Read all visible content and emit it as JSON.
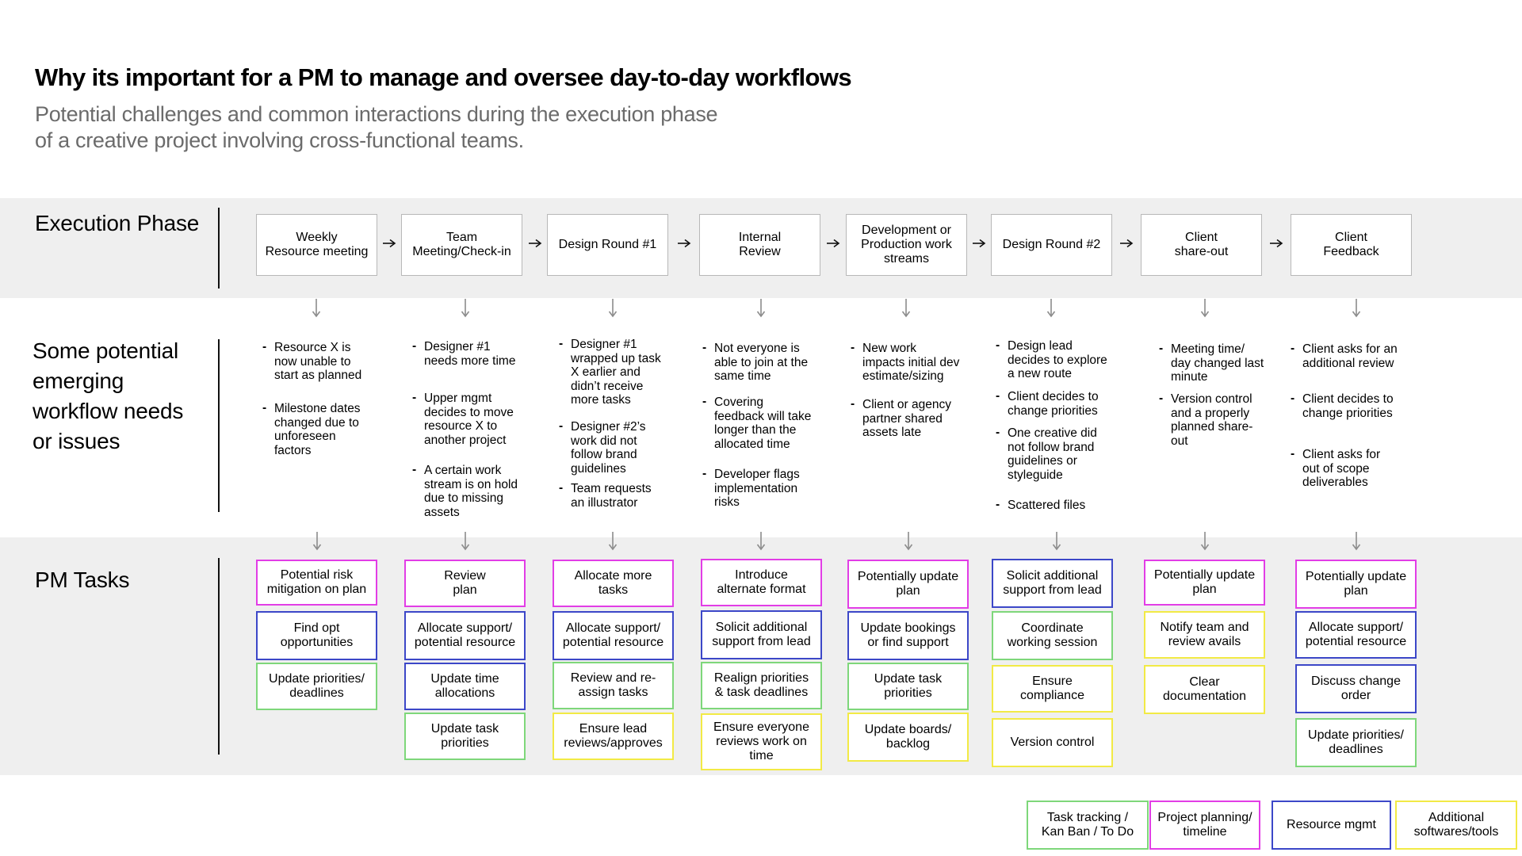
{
  "header": {
    "title": "Why its important for a PM to manage and oversee day-to-day workflows",
    "subtitle_line1": "Potential challenges and common interactions during the execution phase",
    "subtitle_line2": "of a creative project involving cross-functional teams."
  },
  "rows": {
    "execution": "Execution Phase",
    "issues": [
      "Some potential",
      "emerging",
      "workflow needs",
      "or issues"
    ],
    "tasks": "PM Tasks"
  },
  "colors": {
    "band": "#efefef",
    "arrow": "#8c8c8c",
    "planning": "#e23de6",
    "resource": "#3c47c8",
    "tracking": "#7ed77a",
    "tools": "#f2ea45"
  },
  "stages": [
    [
      "Weekly",
      "Resource meeting"
    ],
    [
      "Team",
      "Meeting/Check-in"
    ],
    [
      "Design Round #1"
    ],
    [
      "Internal",
      "Review"
    ],
    [
      "Development  or",
      "Production work",
      "streams"
    ],
    [
      "Design Round #2"
    ],
    [
      "Client",
      "share-out"
    ],
    [
      "Client",
      "Feedback"
    ]
  ],
  "issues": [
    [
      [
        "Resource X is",
        "now unable to",
        "start as planned"
      ],
      [
        "Milestone dates",
        "changed due to",
        "unforeseen",
        "factors"
      ]
    ],
    [
      [
        "Designer #1",
        "needs more time"
      ],
      [
        "Upper mgmt",
        "decides to move",
        "resource X to",
        "another project"
      ],
      [
        "A certain work",
        "stream is on hold",
        "due to missing",
        "assets"
      ]
    ],
    [
      [
        "Designer #1",
        "wrapped up task",
        "X earlier and",
        "didn’t receive",
        "more tasks"
      ],
      [
        "Designer #2’s",
        "work did not",
        "follow brand",
        "guidelines"
      ],
      [
        "Team requests",
        "an illustrator"
      ]
    ],
    [
      [
        "Not everyone is",
        "able to join at the",
        "same time"
      ],
      [
        "Covering",
        "feedback will take",
        "longer than the",
        "allocated time"
      ],
      [
        "Developer flags",
        "implementation",
        "risks"
      ]
    ],
    [
      [
        "New work",
        "impacts initial dev",
        "estimate/sizing"
      ],
      [
        "Client or agency",
        "partner shared",
        "assets late"
      ]
    ],
    [
      [
        "Design lead",
        "decides to explore",
        "a new route"
      ],
      [
        "Client decides to",
        "change priorities"
      ],
      [
        "One creative did",
        "not follow brand",
        "guidelines or",
        "styleguide"
      ],
      [
        "Scattered files"
      ]
    ],
    [
      [
        "Meeting time/",
        "day changed last",
        "minute"
      ],
      [
        "Version control",
        "and a properly",
        "planned share-",
        "out"
      ]
    ],
    [
      [
        "Client asks for an",
        "additional review"
      ],
      [
        "Client decides to",
        "change priorities"
      ],
      [
        "Client asks for",
        "out of scope",
        "deliverables"
      ]
    ]
  ],
  "tasks": [
    [
      {
        "lines": [
          "Potential risk",
          "mitigation on plan"
        ],
        "category": "planning"
      },
      {
        "lines": [
          "Find opt",
          "opportunities"
        ],
        "category": "resource"
      },
      {
        "lines": [
          "Update priorities/",
          "deadlines"
        ],
        "category": "tracking"
      }
    ],
    [
      {
        "lines": [
          "Review",
          "plan"
        ],
        "category": "planning"
      },
      {
        "lines": [
          "Allocate support/",
          "potential resource"
        ],
        "category": "resource"
      },
      {
        "lines": [
          "Update time",
          "allocations"
        ],
        "category": "resource"
      },
      {
        "lines": [
          "Update task",
          "priorities"
        ],
        "category": "tracking"
      }
    ],
    [
      {
        "lines": [
          "Allocate more",
          "tasks"
        ],
        "category": "planning"
      },
      {
        "lines": [
          "Allocate support/",
          "potential resource"
        ],
        "category": "resource"
      },
      {
        "lines": [
          "Review and re-",
          "assign tasks"
        ],
        "category": "tracking"
      },
      {
        "lines": [
          "Ensure lead",
          "reviews/approves"
        ],
        "category": "tools"
      }
    ],
    [
      {
        "lines": [
          "Introduce",
          "alternate format"
        ],
        "category": "planning"
      },
      {
        "lines": [
          "Solicit additional",
          "support from lead"
        ],
        "category": "resource"
      },
      {
        "lines": [
          "Realign priorities",
          "& task deadlines"
        ],
        "category": "tracking"
      },
      {
        "lines": [
          "Ensure everyone",
          "reviews work on",
          "time"
        ],
        "category": "tools"
      }
    ],
    [
      {
        "lines": [
          "Potentially update",
          "plan"
        ],
        "category": "planning"
      },
      {
        "lines": [
          "Update bookings",
          "or find support"
        ],
        "category": "resource"
      },
      {
        "lines": [
          "Update task",
          "priorities"
        ],
        "category": "tracking"
      },
      {
        "lines": [
          "Update boards/",
          "backlog"
        ],
        "category": "tools"
      }
    ],
    [
      {
        "lines": [
          "Solicit additional",
          "support from lead"
        ],
        "category": "resource"
      },
      {
        "lines": [
          "Coordinate",
          "working session"
        ],
        "category": "tracking"
      },
      {
        "lines": [
          "Ensure",
          "compliance"
        ],
        "category": "tools"
      },
      {
        "lines": [
          "Version control"
        ],
        "category": "tools"
      }
    ],
    [
      {
        "lines": [
          "Potentially update",
          "plan"
        ],
        "category": "planning"
      },
      {
        "lines": [
          "Notify team and",
          "review avails"
        ],
        "category": "tools"
      },
      {
        "lines": [
          "Clear",
          "documentation"
        ],
        "category": "tools"
      }
    ],
    [
      {
        "lines": [
          "Potentially update",
          "plan"
        ],
        "category": "planning"
      },
      {
        "lines": [
          "Allocate support/",
          "potential resource"
        ],
        "category": "resource"
      },
      {
        "lines": [
          "Discuss change",
          "order"
        ],
        "category": "resource"
      },
      {
        "lines": [
          "Update priorities/",
          "deadlines"
        ],
        "category": "tracking"
      }
    ]
  ],
  "legend": [
    {
      "lines": [
        "Task tracking /",
        "Kan Ban / To Do"
      ],
      "category": "tracking"
    },
    {
      "lines": [
        "Project planning/",
        "timeline"
      ],
      "category": "planning"
    },
    {
      "lines": [
        "Resource mgmt"
      ],
      "category": "resource"
    },
    {
      "lines": [
        "Additional",
        "softwares/tools"
      ],
      "category": "tools"
    }
  ]
}
